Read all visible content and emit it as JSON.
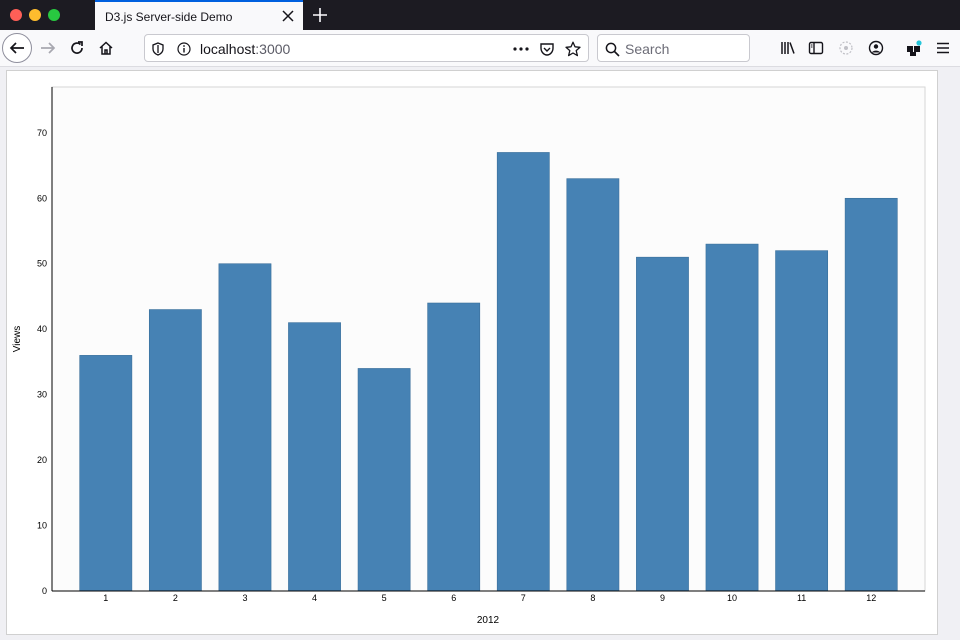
{
  "browser": {
    "tab_title": "D3.js Server-side Demo",
    "url_host": "localhost",
    "url_port": ":3000",
    "search_placeholder": "Search"
  },
  "colors": {
    "bar": "#4682b4",
    "tab_accent": "#0060df",
    "extension_badge": "#26c6da"
  },
  "icons": [
    "back-arrow-icon",
    "forward-arrow-icon",
    "reload-icon",
    "home-icon",
    "shield-icon",
    "info-icon",
    "more-dots-icon",
    "pocket-icon",
    "star-icon",
    "search-icon",
    "library-icon",
    "sidebar-icon",
    "sync-icon",
    "account-icon",
    "extensions-icon",
    "menu-icon",
    "close-icon",
    "plus-icon"
  ],
  "chart_data": {
    "type": "bar",
    "categories": [
      "1",
      "2",
      "3",
      "4",
      "5",
      "6",
      "7",
      "8",
      "9",
      "10",
      "11",
      "12"
    ],
    "values": [
      36,
      43,
      50,
      41,
      34,
      44,
      67,
      63,
      51,
      53,
      52,
      60
    ],
    "xlabel": "2012",
    "ylabel": "Views",
    "ylim": [
      0,
      77
    ],
    "yticks": [
      "0",
      "10",
      "20",
      "30",
      "40",
      "50",
      "60",
      "70"
    ],
    "grid": false,
    "legend": "none"
  }
}
